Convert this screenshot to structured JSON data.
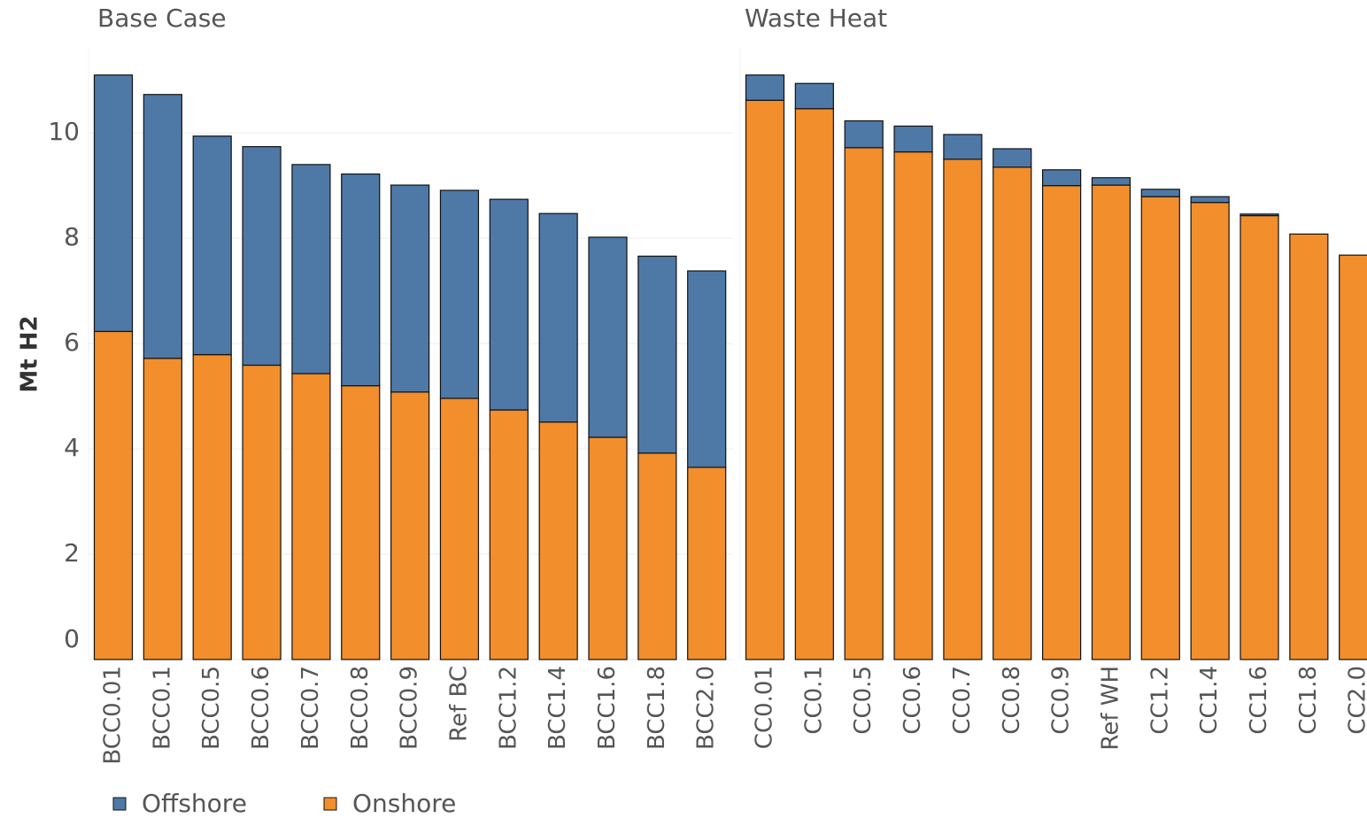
{
  "chart_data": [
    {
      "type": "bar",
      "title": "Base Case",
      "y_label": "Mt H2",
      "categories": [
        "BCC0.01",
        "BCC0.1",
        "BCC0.5",
        "BCC0.6",
        "BCC0.7",
        "BCC0.8",
        "BCC0.9",
        "Ref BC",
        "BCC1.2",
        "BCC1.4",
        "BCC1.6",
        "BCC1.8",
        "BCC2.0"
      ],
      "series": [
        {
          "name": "Onshore",
          "color": "#f28e2b",
          "values": [
            6.23,
            5.72,
            5.79,
            5.59,
            5.43,
            5.2,
            5.08,
            4.96,
            4.74,
            4.51,
            4.22,
            3.92,
            3.65
          ]
        },
        {
          "name": "Offshore",
          "color": "#4e79a7",
          "values": [
            4.87,
            5.01,
            4.15,
            4.15,
            3.97,
            4.02,
            3.93,
            3.95,
            4.0,
            3.96,
            3.8,
            3.74,
            3.73
          ]
        }
      ],
      "stacked": true,
      "ylim": [
        0,
        11.6
      ],
      "yticks": [
        0,
        2,
        4,
        6,
        8,
        10
      ],
      "grid": true
    },
    {
      "type": "bar",
      "title": "Waste Heat",
      "categories": [
        "CC0.01",
        "CC0.1",
        "CC0.5",
        "CC0.6",
        "CC0.7",
        "CC0.8",
        "CC0.9",
        "Ref WH",
        "CC1.2",
        "CC1.4",
        "CC1.6",
        "CC1.8",
        "CC2.0"
      ],
      "series": [
        {
          "name": "Onshore",
          "color": "#f28e2b",
          "values": [
            10.62,
            10.46,
            9.72,
            9.64,
            9.5,
            9.35,
            9.0,
            9.01,
            8.79,
            8.68,
            8.43,
            8.08,
            7.68
          ]
        },
        {
          "name": "Offshore",
          "color": "#4e79a7",
          "values": [
            0.48,
            0.48,
            0.51,
            0.49,
            0.47,
            0.35,
            0.3,
            0.14,
            0.14,
            0.11,
            0.03,
            0,
            0
          ]
        }
      ],
      "stacked": true,
      "ylim": [
        0,
        11.6
      ]
    }
  ]
}
